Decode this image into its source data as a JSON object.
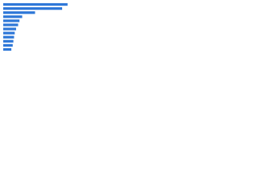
{
  "chart_data": {
    "type": "bar",
    "orientation": "horizontal",
    "categories": [
      null,
      null,
      null,
      null,
      null,
      null,
      null,
      null,
      null,
      null,
      null,
      null
    ],
    "values": [
      95,
      87,
      47,
      28,
      24,
      22,
      19,
      17,
      16,
      15,
      14,
      12
    ],
    "color": "#2f78d8",
    "xlim": [
      0,
      100
    ]
  }
}
